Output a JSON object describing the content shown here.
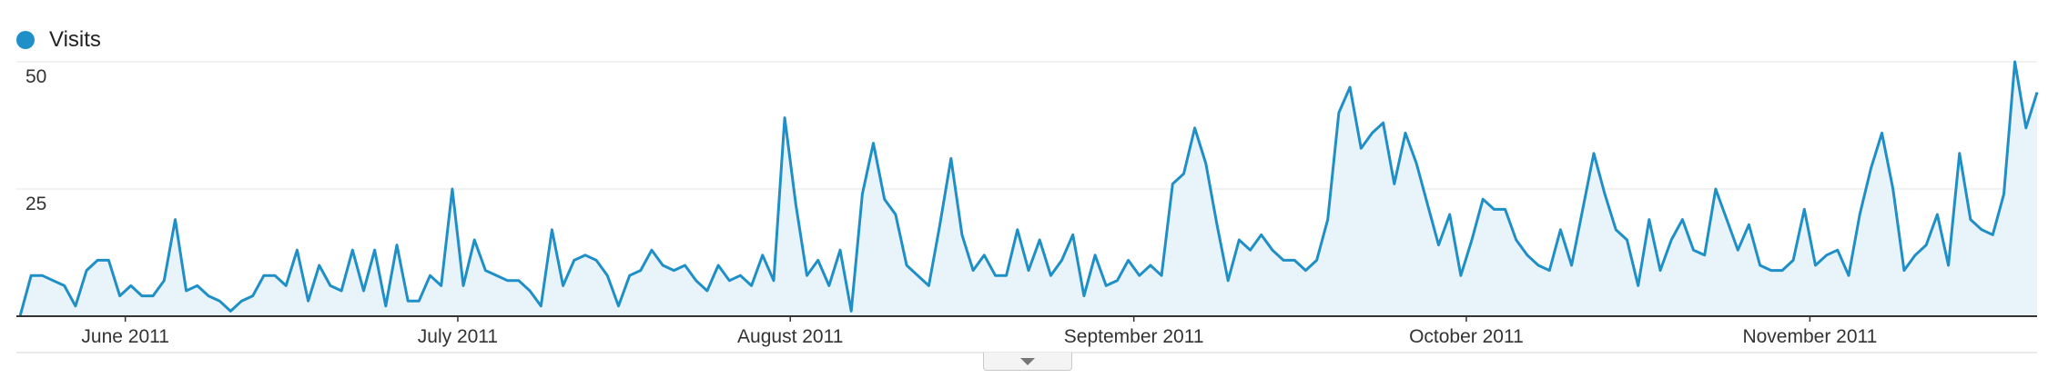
{
  "chart_data": {
    "type": "area",
    "series": [
      {
        "name": "Visits",
        "color": "#1f8fc7",
        "values": [
          0,
          8,
          8,
          7,
          6,
          2,
          9,
          11,
          11,
          4,
          6,
          4,
          4,
          7,
          19,
          5,
          6,
          4,
          3,
          1,
          3,
          4,
          8,
          8,
          6,
          13,
          3,
          10,
          6,
          5,
          13,
          5,
          13,
          2,
          14,
          3,
          3,
          8,
          6,
          25,
          6,
          15,
          9,
          8,
          7,
          7,
          5,
          2,
          17,
          6,
          11,
          12,
          11,
          8,
          2,
          8,
          9,
          13,
          10,
          9,
          10,
          7,
          5,
          10,
          7,
          8,
          6,
          12,
          7,
          39,
          22,
          8,
          11,
          6,
          13,
          1,
          24,
          34,
          23,
          20,
          10,
          8,
          6,
          18,
          31,
          16,
          9,
          12,
          8,
          8,
          17,
          9,
          15,
          8,
          11,
          16,
          4,
          12,
          6,
          7,
          11,
          8,
          10,
          8,
          26,
          28,
          37,
          30,
          18,
          7,
          15,
          13,
          16,
          13,
          11,
          11,
          9,
          11,
          19,
          40,
          45,
          33,
          36,
          38,
          26,
          36,
          30,
          22,
          14,
          20,
          8,
          15,
          23,
          21,
          21,
          15,
          12,
          10,
          9,
          17,
          10,
          21,
          32,
          24,
          17,
          15,
          6,
          19,
          9,
          15,
          19,
          13,
          12,
          25,
          19,
          13,
          18,
          10,
          9,
          9,
          11,
          21,
          10,
          12,
          13,
          8,
          20,
          29,
          36,
          25,
          9,
          12,
          14,
          20,
          10,
          32,
          19,
          17,
          16,
          24,
          50,
          37,
          44
        ]
      }
    ],
    "x_tick_labels": [
      "June 2011",
      "July 2011",
      "August 2011",
      "September 2011",
      "October 2011",
      "November 2011"
    ],
    "x_tick_index": [
      9.5,
      39.5,
      69.5,
      100.5,
      130.5,
      161.5
    ],
    "y_tick_labels": [
      "50",
      "25"
    ],
    "y_ticks": [
      50,
      25
    ],
    "ylim": [
      0,
      50
    ],
    "grid": true,
    "legend_position": "top-left",
    "fill_color": "#e8f3fa"
  }
}
